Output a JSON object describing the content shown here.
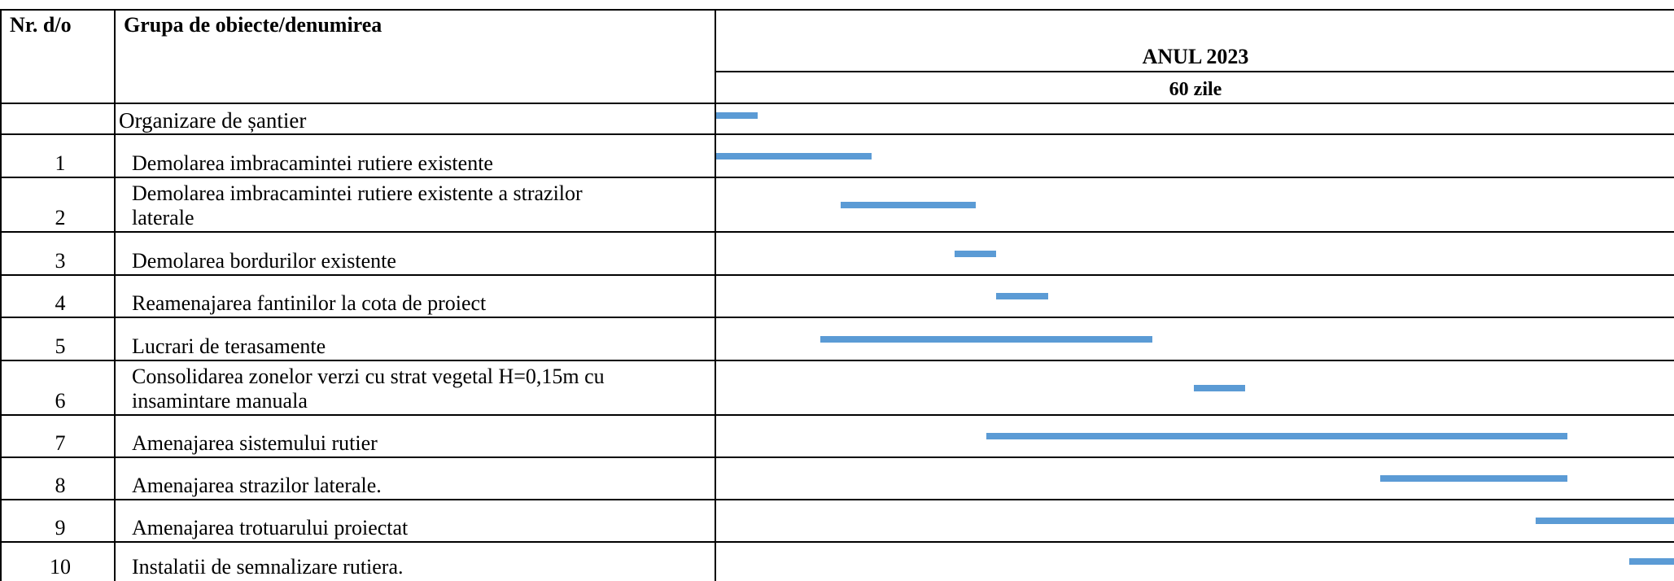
{
  "header": {
    "col_nr": "Nr. d/o",
    "col_group": "Grupa de obiecte/denumirea",
    "year": "ANUL 2023",
    "duration": "60 zile"
  },
  "rows": [
    {
      "nr": "",
      "lines": [
        "Organizare de șantier"
      ],
      "bar_start_day": 0.0,
      "bar_end_day": 2.0
    },
    {
      "nr": "1",
      "lines": [
        "Demolarea imbracamintei rutiere existente"
      ],
      "bar_start_day": 0.0,
      "bar_end_day": 7.5
    },
    {
      "nr": "2",
      "lines": [
        "Demolarea imbracamintei rutiere existente a strazilor",
        "laterale"
      ],
      "bar_start_day": 6.0,
      "bar_end_day": 12.5
    },
    {
      "nr": "3",
      "lines": [
        "Demolarea bordurilor existente"
      ],
      "bar_start_day": 11.5,
      "bar_end_day": 13.5
    },
    {
      "nr": "4",
      "lines": [
        "Reamenajarea fantinilor la cota de proiect"
      ],
      "bar_start_day": 13.5,
      "bar_end_day": 16.0
    },
    {
      "nr": "5",
      "lines": [
        "Lucrari de terasamente"
      ],
      "bar_start_day": 5.0,
      "bar_end_day": 21.0
    },
    {
      "nr": "6",
      "lines": [
        "Consolidarea zonelor verzi cu strat vegetal H=0,15m cu",
        "insamintare manuala"
      ],
      "bar_start_day": 23.0,
      "bar_end_day": 25.5
    },
    {
      "nr": "7",
      "lines": [
        "Amenajarea sistemului rutier"
      ],
      "bar_start_day": 13.0,
      "bar_end_day": 41.0
    },
    {
      "nr": "8",
      "lines": [
        "Amenajarea strazilor laterale."
      ],
      "bar_start_day": 32.0,
      "bar_end_day": 41.0
    },
    {
      "nr": "9",
      "lines": [
        "Amenajarea trotuarului proiectat"
      ],
      "bar_start_day": 39.5,
      "bar_end_day": 47.5
    },
    {
      "nr": "10",
      "lines": [
        "Instalatii de semnalizare rutiera."
      ],
      "bar_start_day": 44.0,
      "bar_end_day": 48.0
    }
  ],
  "colors": {
    "bar": "#5b9bd5",
    "grid": "#000000"
  }
}
